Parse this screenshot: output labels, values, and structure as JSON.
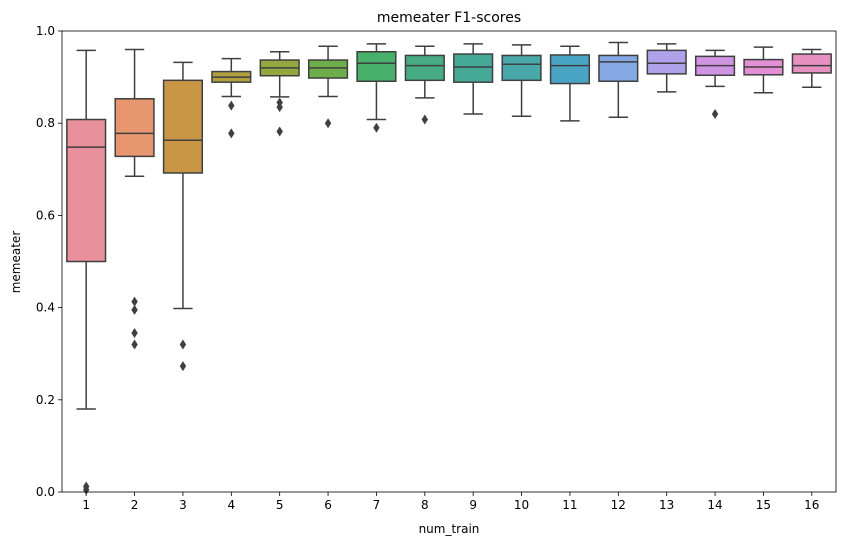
{
  "chart_data": {
    "type": "box",
    "title": "memeater F1-scores",
    "xlabel": "num_train",
    "ylabel": "memeater",
    "ylim": [
      0,
      1
    ],
    "yticks": [
      0.0,
      0.2,
      0.4,
      0.6,
      0.8,
      1.0
    ],
    "ytick_labels": [
      "0.0",
      "0.2",
      "0.4",
      "0.6",
      "0.8",
      "1.0"
    ],
    "grid": false,
    "categories": [
      "1",
      "2",
      "3",
      "4",
      "5",
      "6",
      "7",
      "8",
      "9",
      "10",
      "11",
      "12",
      "13",
      "14",
      "15",
      "16"
    ],
    "boxes": [
      {
        "category": "1",
        "color": "#e8909c",
        "whislo": 0.18,
        "q1": 0.5,
        "med": 0.748,
        "q3": 0.808,
        "whishi": 0.958,
        "fliers": [
          0.005,
          0.012
        ]
      },
      {
        "category": "2",
        "color": "#e8966f",
        "whislo": 0.685,
        "q1": 0.728,
        "med": 0.778,
        "q3": 0.853,
        "whishi": 0.96,
        "fliers": [
          0.32,
          0.345,
          0.395,
          0.413
        ]
      },
      {
        "category": "3",
        "color": "#c89645",
        "whislo": 0.398,
        "q1": 0.692,
        "med": 0.763,
        "q3": 0.893,
        "whishi": 0.932,
        "fliers": [
          0.273,
          0.32
        ]
      },
      {
        "category": "4",
        "color": "#b0a040",
        "whislo": 0.858,
        "q1": 0.889,
        "med": 0.9,
        "q3": 0.912,
        "whishi": 0.94,
        "fliers": [
          0.778,
          0.838
        ]
      },
      {
        "category": "5",
        "color": "#93a83f",
        "whislo": 0.857,
        "q1": 0.903,
        "med": 0.92,
        "q3": 0.937,
        "whishi": 0.955,
        "fliers": [
          0.782,
          0.835,
          0.845
        ]
      },
      {
        "category": "6",
        "color": "#6eae4a",
        "whislo": 0.858,
        "q1": 0.898,
        "med": 0.92,
        "q3": 0.937,
        "whishi": 0.967,
        "fliers": [
          0.8
        ]
      },
      {
        "category": "7",
        "color": "#48b06a",
        "whislo": 0.808,
        "q1": 0.891,
        "med": 0.93,
        "q3": 0.955,
        "whishi": 0.972,
        "fliers": [
          0.79
        ]
      },
      {
        "category": "8",
        "color": "#47ab86",
        "whislo": 0.855,
        "q1": 0.893,
        "med": 0.925,
        "q3": 0.947,
        "whishi": 0.967,
        "fliers": [
          0.808
        ]
      },
      {
        "category": "9",
        "color": "#46a998",
        "whislo": 0.82,
        "q1": 0.889,
        "med": 0.922,
        "q3": 0.95,
        "whishi": 0.972,
        "fliers": []
      },
      {
        "category": "10",
        "color": "#48a7a8",
        "whislo": 0.815,
        "q1": 0.893,
        "med": 0.928,
        "q3": 0.947,
        "whishi": 0.97,
        "fliers": []
      },
      {
        "category": "11",
        "color": "#4aa5c5",
        "whislo": 0.805,
        "q1": 0.886,
        "med": 0.925,
        "q3": 0.948,
        "whishi": 0.967,
        "fliers": []
      },
      {
        "category": "12",
        "color": "#85a8e2",
        "whislo": 0.813,
        "q1": 0.891,
        "med": 0.933,
        "q3": 0.947,
        "whishi": 0.975,
        "fliers": []
      },
      {
        "category": "13",
        "color": "#b0a2ea",
        "whislo": 0.868,
        "q1": 0.907,
        "med": 0.93,
        "q3": 0.958,
        "whishi": 0.972,
        "fliers": []
      },
      {
        "category": "14",
        "color": "#d095e2",
        "whislo": 0.88,
        "q1": 0.904,
        "med": 0.925,
        "q3": 0.945,
        "whishi": 0.958,
        "fliers": [
          0.82
        ]
      },
      {
        "category": "15",
        "color": "#e28fd5",
        "whislo": 0.866,
        "q1": 0.905,
        "med": 0.922,
        "q3": 0.938,
        "whishi": 0.965,
        "fliers": []
      },
      {
        "category": "16",
        "color": "#e791c2",
        "whislo": 0.878,
        "q1": 0.909,
        "med": 0.925,
        "q3": 0.95,
        "whishi": 0.96,
        "fliers": []
      }
    ]
  }
}
